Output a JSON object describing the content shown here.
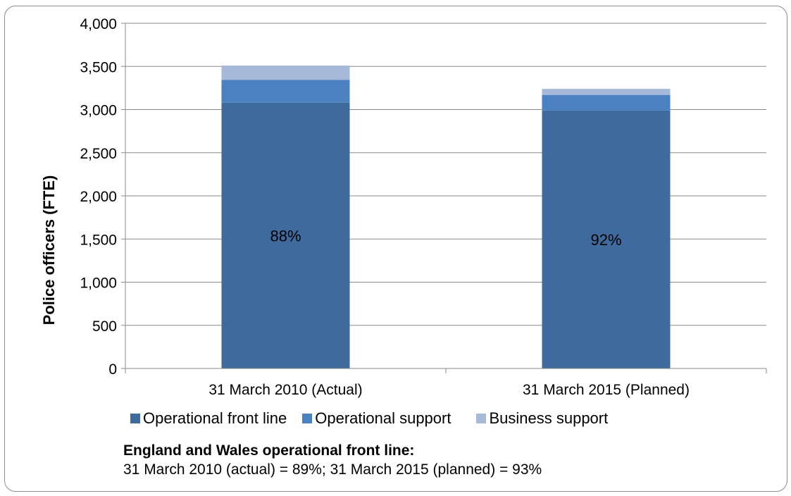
{
  "chart_data": {
    "type": "bar",
    "stacked": true,
    "categories": [
      "31 March 2010 (Actual)",
      "31 March 2015 (Planned)"
    ],
    "series": [
      {
        "name": "Operational front line",
        "values": [
          3080,
          2990
        ],
        "color": "#3f6a9d"
      },
      {
        "name": "Operational support",
        "values": [
          265,
          180
        ],
        "color": "#4a81c0"
      },
      {
        "name": "Business support",
        "values": [
          165,
          70
        ],
        "color": "#a7b9d9"
      }
    ],
    "data_labels": [
      "88%",
      "92%"
    ],
    "title": "",
    "xlabel": "",
    "ylabel": "Police officers (FTE)",
    "ylim": [
      0,
      4000
    ],
    "yticks": [
      0,
      500,
      1000,
      1500,
      2000,
      2500,
      3000,
      3500,
      4000
    ],
    "ytick_labels": [
      "0",
      "500",
      "1,000",
      "1,500",
      "2,000",
      "2,500",
      "3,000",
      "3,500",
      "4,000"
    ],
    "grid": true,
    "legend_position": "bottom"
  },
  "note": {
    "title": "England and Wales operational front line:",
    "text": "31 March 2010 (actual) = 89%; 31 March 2015 (planned) = 93%"
  }
}
